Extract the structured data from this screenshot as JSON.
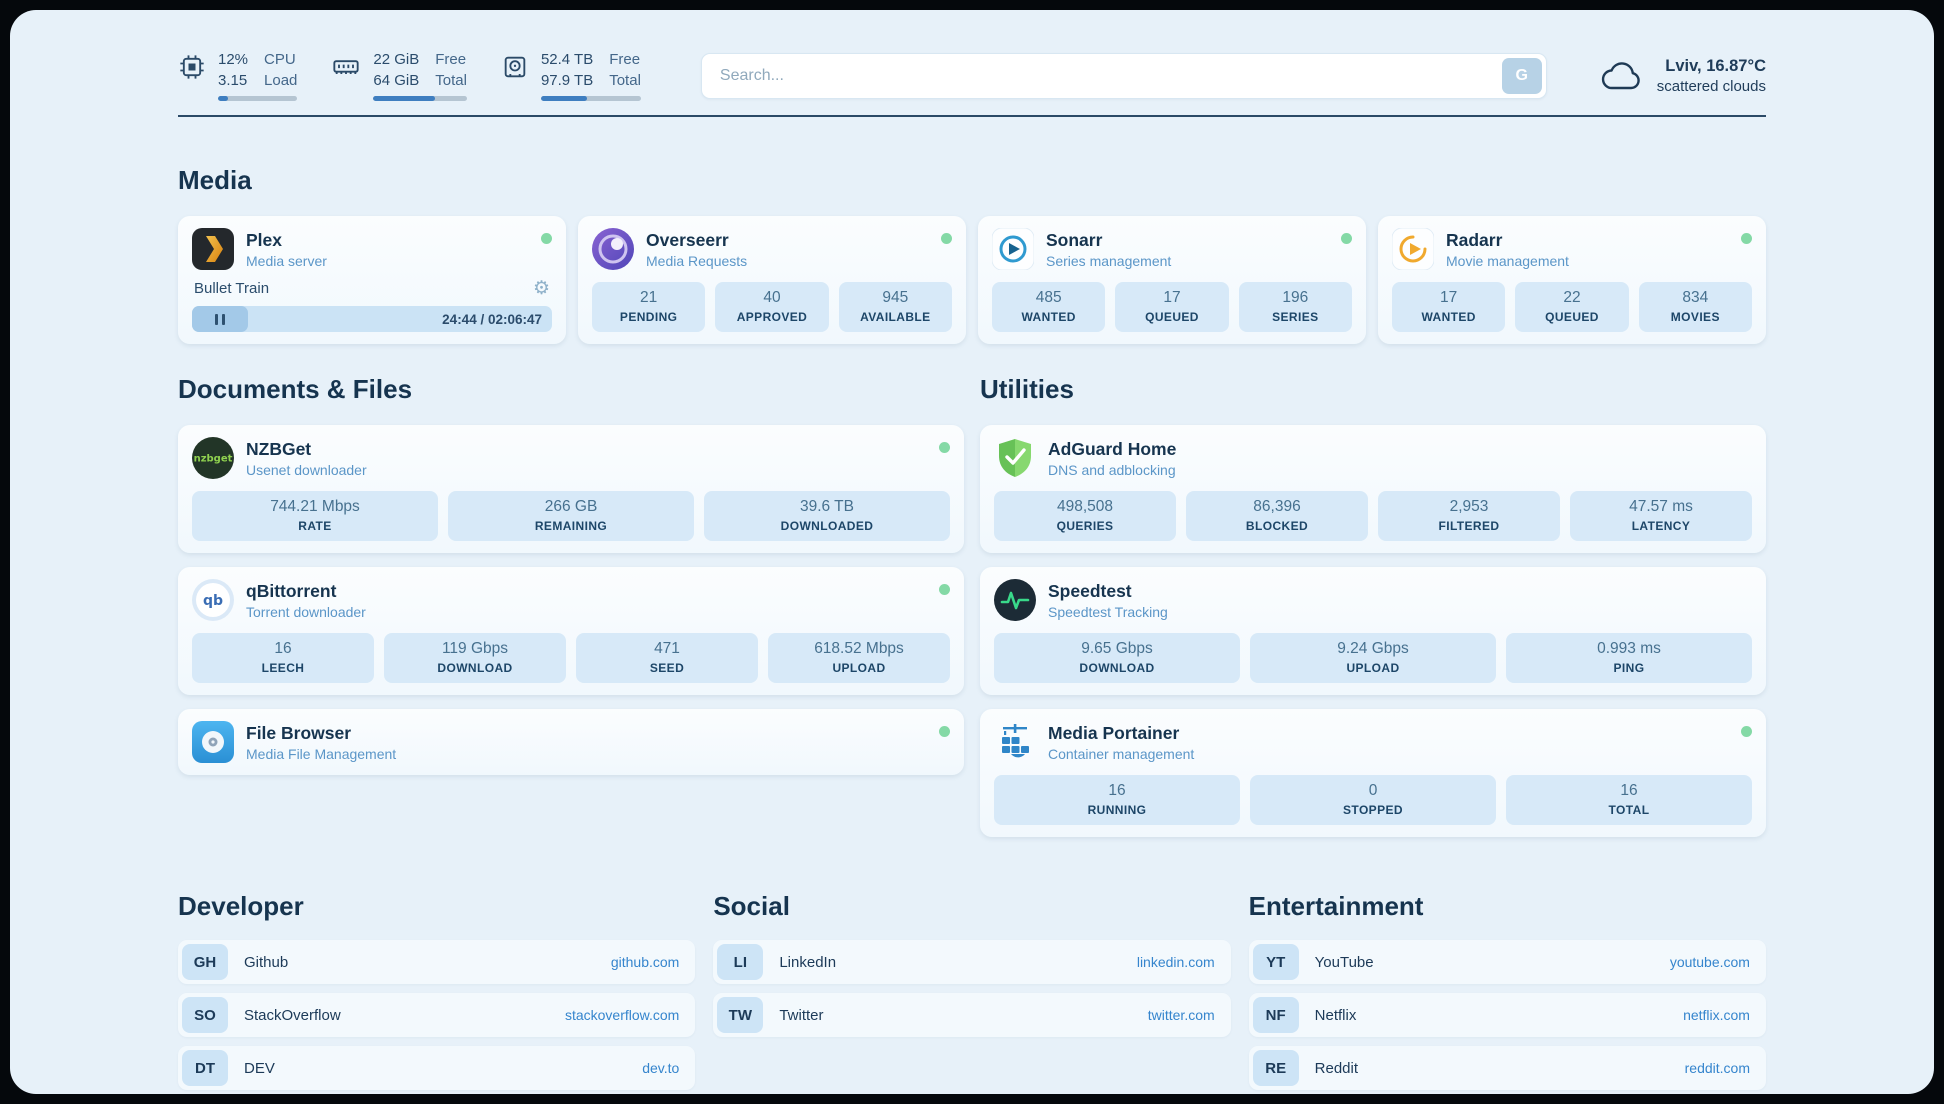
{
  "topbar": {
    "cpu": {
      "value_top": "12%",
      "value_bottom": "3.15",
      "label_top": "CPU",
      "label_bottom": "Load",
      "percent": 12
    },
    "ram": {
      "value_top": "22 GiB",
      "value_bottom": "64 GiB",
      "label_top": "Free",
      "label_bottom": "Total",
      "percent": 66
    },
    "disk": {
      "value_top": "52.4 TB",
      "value_bottom": "97.9 TB",
      "label_top": "Free",
      "label_bottom": "Total",
      "percent": 46
    },
    "search": {
      "placeholder": "Search...",
      "button_label": "G"
    },
    "weather": {
      "location": "Lviv, 16.87°C",
      "condition": "scattered clouds"
    }
  },
  "media": {
    "title": "Media",
    "plex": {
      "name": "Plex",
      "desc": "Media server",
      "track": "Bullet Train",
      "time": "24:44 / 02:06:47"
    },
    "overseerr": {
      "name": "Overseerr",
      "desc": "Media Requests",
      "stats": [
        {
          "value": "21",
          "label": "PENDING"
        },
        {
          "value": "40",
          "label": "APPROVED"
        },
        {
          "value": "945",
          "label": "AVAILABLE"
        }
      ]
    },
    "sonarr": {
      "name": "Sonarr",
      "desc": "Series management",
      "stats": [
        {
          "value": "485",
          "label": "WANTED"
        },
        {
          "value": "17",
          "label": "QUEUED"
        },
        {
          "value": "196",
          "label": "SERIES"
        }
      ]
    },
    "radarr": {
      "name": "Radarr",
      "desc": "Movie management",
      "stats": [
        {
          "value": "17",
          "label": "WANTED"
        },
        {
          "value": "22",
          "label": "QUEUED"
        },
        {
          "value": "834",
          "label": "MOVIES"
        }
      ]
    }
  },
  "documents": {
    "title": "Documents & Files",
    "nzbget": {
      "name": "NZBGet",
      "desc": "Usenet downloader",
      "stats": [
        {
          "value": "744.21 Mbps",
          "label": "RATE"
        },
        {
          "value": "266 GB",
          "label": "REMAINING"
        },
        {
          "value": "39.6 TB",
          "label": "DOWNLOADED"
        }
      ]
    },
    "qbittorrent": {
      "name": "qBittorrent",
      "desc": "Torrent downloader",
      "stats": [
        {
          "value": "16",
          "label": "LEECH"
        },
        {
          "value": "119 Gbps",
          "label": "DOWNLOAD"
        },
        {
          "value": "471",
          "label": "SEED"
        },
        {
          "value": "618.52 Mbps",
          "label": "UPLOAD"
        }
      ]
    },
    "filebrowser": {
      "name": "File Browser",
      "desc": "Media File Management"
    }
  },
  "utilities": {
    "title": "Utilities",
    "adguard": {
      "name": "AdGuard Home",
      "desc": "DNS and adblocking",
      "stats": [
        {
          "value": "498,508",
          "label": "QUERIES"
        },
        {
          "value": "86,396",
          "label": "BLOCKED"
        },
        {
          "value": "2,953",
          "label": "FILTERED"
        },
        {
          "value": "47.57 ms",
          "label": "LATENCY"
        }
      ]
    },
    "speedtest": {
      "name": "Speedtest",
      "desc": "Speedtest Tracking",
      "stats": [
        {
          "value": "9.65 Gbps",
          "label": "DOWNLOAD"
        },
        {
          "value": "9.24 Gbps",
          "label": "UPLOAD"
        },
        {
          "value": "0.993 ms",
          "label": "PING"
        }
      ]
    },
    "portainer": {
      "name": "Media Portainer",
      "desc": "Container management",
      "stats": [
        {
          "value": "16",
          "label": "RUNNING"
        },
        {
          "value": "0",
          "label": "STOPPED"
        },
        {
          "value": "16",
          "label": "TOTAL"
        }
      ]
    }
  },
  "bookmarks": {
    "developer": {
      "title": "Developer",
      "items": [
        {
          "abbr": "GH",
          "name": "Github",
          "url": "github.com"
        },
        {
          "abbr": "SO",
          "name": "StackOverflow",
          "url": "stackoverflow.com"
        },
        {
          "abbr": "DT",
          "name": "DEV",
          "url": "dev.to"
        }
      ]
    },
    "social": {
      "title": "Social",
      "items": [
        {
          "abbr": "LI",
          "name": "LinkedIn",
          "url": "linkedin.com"
        },
        {
          "abbr": "TW",
          "name": "Twitter",
          "url": "twitter.com"
        }
      ]
    },
    "entertainment": {
      "title": "Entertainment",
      "items": [
        {
          "abbr": "YT",
          "name": "YouTube",
          "url": "youtube.com"
        },
        {
          "abbr": "NF",
          "name": "Netflix",
          "url": "netflix.com"
        },
        {
          "abbr": "RE",
          "name": "Reddit",
          "url": "reddit.com"
        }
      ]
    }
  },
  "icons": {
    "gear": "⚙",
    "status_dot_color": "#84d9a6",
    "accent_blue": "#3e7ec0"
  }
}
